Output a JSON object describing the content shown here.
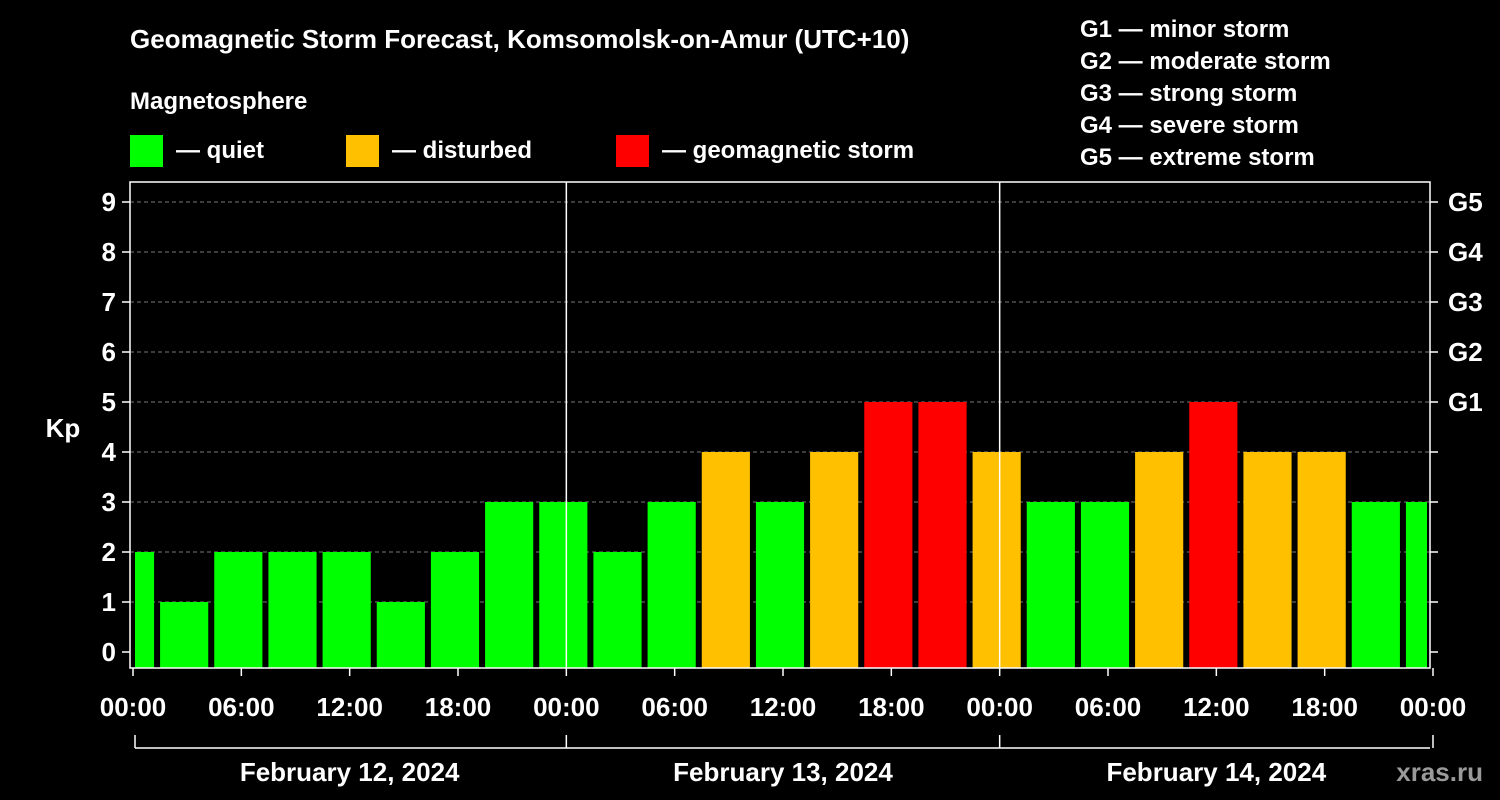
{
  "chart_data": {
    "type": "bar",
    "title": "Geomagnetic Storm Forecast, Komsomolsk-on-Amur (UTC+10)",
    "ylabel": "Kp",
    "ylim": [
      0,
      9
    ],
    "yticks": [
      0,
      1,
      2,
      3,
      4,
      5,
      6,
      7,
      8,
      9
    ],
    "right_axis_labels": [
      {
        "kp": 5,
        "label": "G1"
      },
      {
        "kp": 6,
        "label": "G2"
      },
      {
        "kp": 7,
        "label": "G3"
      },
      {
        "kp": 8,
        "label": "G4"
      },
      {
        "kp": 9,
        "label": "G5"
      }
    ],
    "xtick_labels": [
      "00:00",
      "06:00",
      "12:00",
      "18:00",
      "00:00",
      "06:00",
      "12:00",
      "18:00",
      "00:00",
      "06:00",
      "12:00",
      "18:00",
      "00:00"
    ],
    "days": [
      "February 12, 2024",
      "February 13, 2024",
      "February 14, 2024"
    ],
    "interval_hours": 3,
    "values": [
      2,
      1,
      2,
      2,
      2,
      1,
      2,
      3,
      3,
      2,
      3,
      4,
      3,
      4,
      5,
      5,
      4,
      3,
      3,
      4,
      5,
      4,
      4,
      3,
      3
    ],
    "legend": {
      "title": "Magnetosphere",
      "items": [
        {
          "label": "— quiet",
          "color": "#00ff00"
        },
        {
          "label": "— disturbed",
          "color": "#ffc000"
        },
        {
          "label": "— geomagnetic storm",
          "color": "#ff0000"
        }
      ]
    },
    "storm_scale": [
      "G1 — minor storm",
      "G2 — moderate storm",
      "G3 — strong storm",
      "G4 — severe storm",
      "G5 — extreme storm"
    ],
    "grid": true
  },
  "watermark": "xras.ru"
}
